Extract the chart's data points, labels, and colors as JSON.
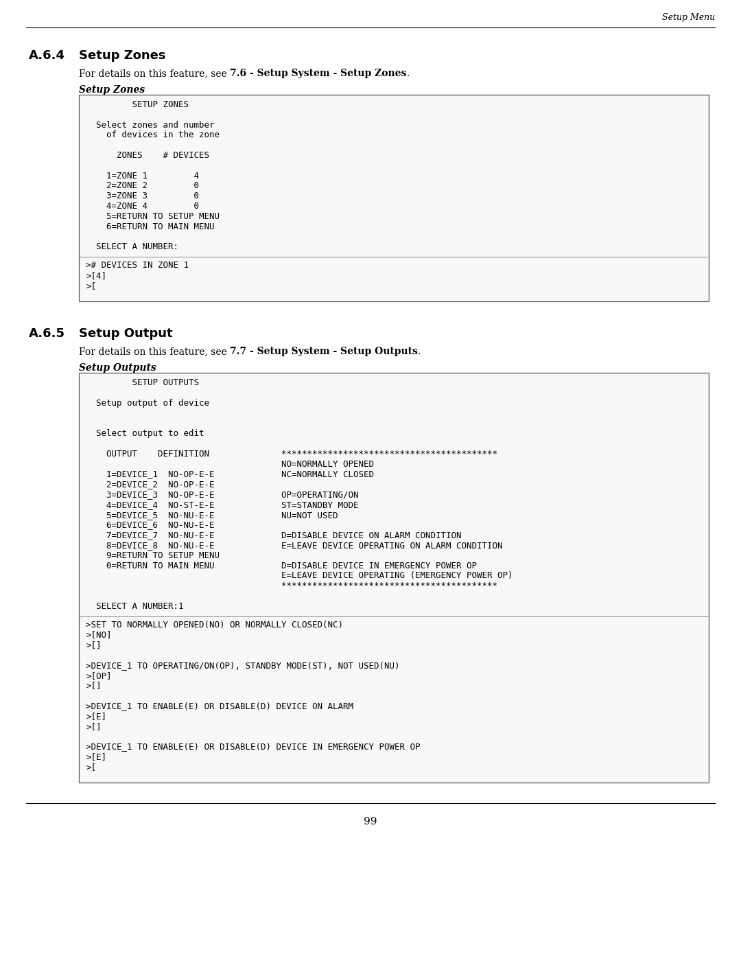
{
  "page_bg": "#ffffff",
  "header_text": "Setup Menu",
  "footer_text": "99",
  "s1_heading_num": "A.6.4",
  "s1_heading_txt": "Setup Zones",
  "s1_desc_pre": "For details on this feature, see ",
  "s1_desc_bold": "7.6 - Setup System - Setup Zones",
  "s1_desc_post": ".",
  "s1_label": "Setup Zones",
  "box1_upper": [
    "         SETUP ZONES",
    "",
    "  Select zones and number",
    "    of devices in the zone",
    "",
    "      ZONES    # DEVICES",
    "",
    "    1=ZONE 1         4",
    "    2=ZONE 2         0",
    "    3=ZONE 3         0",
    "    4=ZONE 4         0",
    "    5=RETURN TO SETUP MENU",
    "    6=RETURN TO MAIN MENU",
    "",
    "  SELECT A NUMBER:"
  ],
  "box1_lower": [
    "># DEVICES IN ZONE 1",
    ">[4]",
    ">[",
    " "
  ],
  "s2_heading_num": "A.6.5",
  "s2_heading_txt": "Setup Output",
  "s2_desc_pre": "For details on this feature, see ",
  "s2_desc_bold": "7.7 - Setup System - Setup Outputs",
  "s2_desc_post": ".",
  "s2_label": "Setup Outputs",
  "box2_upper": [
    "         SETUP OUTPUTS",
    "",
    "  Setup output of device",
    "",
    "",
    "  Select output to edit",
    "",
    "    OUTPUT    DEFINITION              ******************************************",
    "                                      NO=NORMALLY OPENED",
    "    1=DEVICE_1  NO-OP-E-E             NC=NORMALLY CLOSED",
    "    2=DEVICE_2  NO-OP-E-E",
    "    3=DEVICE_3  NO-OP-E-E             OP=OPERATING/ON",
    "    4=DEVICE_4  NO-ST-E-E             ST=STANDBY MODE",
    "    5=DEVICE_5  NO-NU-E-E             NU=NOT USED",
    "    6=DEVICE_6  NO-NU-E-E",
    "    7=DEVICE_7  NO-NU-E-E             D=DISABLE DEVICE ON ALARM CONDITION",
    "    8=DEVICE_8  NO-NU-E-E             E=LEAVE DEVICE OPERATING ON ALARM CONDITION",
    "    9=RETURN TO SETUP MENU",
    "    0=RETURN TO MAIN MENU             D=DISABLE DEVICE IN EMERGENCY POWER OP",
    "                                      E=LEAVE DEVICE OPERATING (EMERGENCY POWER OP)",
    "                                      ******************************************",
    "",
    "  SELECT A NUMBER:1"
  ],
  "box2_lower": [
    ">SET TO NORMALLY OPENED(NO) OR NORMALLY CLOSED(NC)",
    ">[NO]",
    ">[]",
    "",
    ">DEVICE_1 TO OPERATING/ON(OP), STANDBY MODE(ST), NOT USED(NU)",
    ">[OP]",
    ">[]",
    "",
    ">DEVICE_1 TO ENABLE(E) OR DISABLE(D) DEVICE ON ALARM",
    ">[E]",
    ">[]",
    "",
    ">DEVICE_1 TO ENABLE(E) OR DISABLE(D) DEVICE IN EMERGENCY POWER OP",
    ">[E]",
    ">[",
    " "
  ]
}
